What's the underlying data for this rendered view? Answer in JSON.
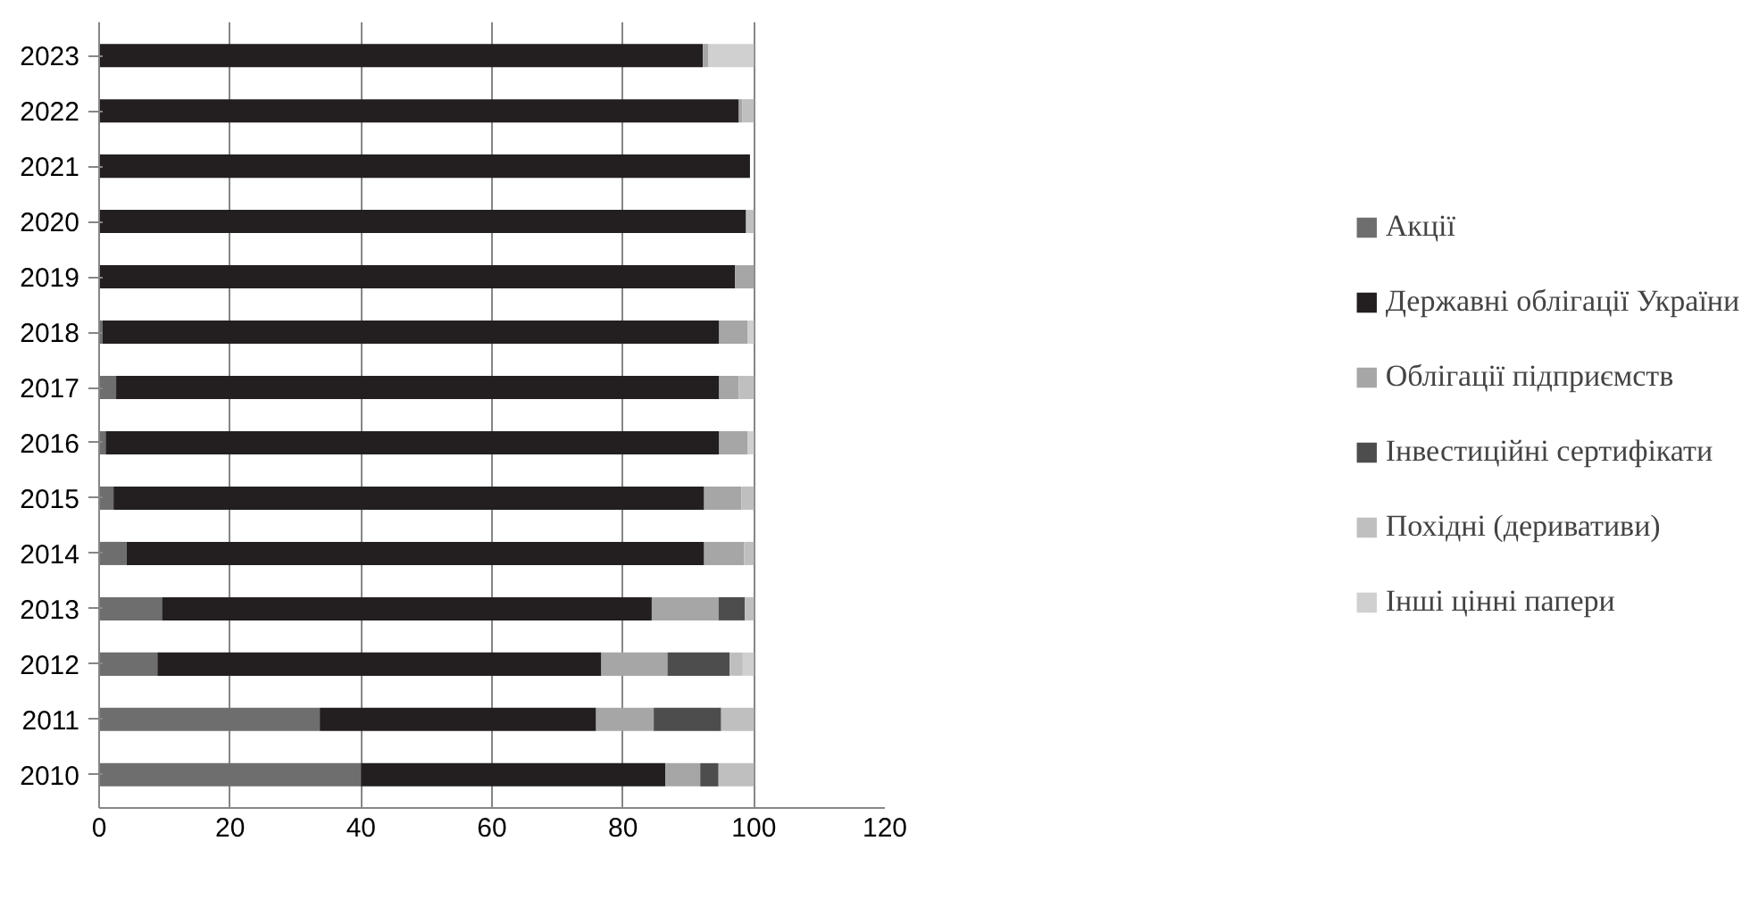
{
  "chart_data": {
    "type": "bar",
    "orientation": "horizontal",
    "stacked": true,
    "categories": [
      "2023",
      "2022",
      "2021",
      "2020",
      "2019",
      "2018",
      "2017",
      "2016",
      "2015",
      "2014",
      "2013",
      "2012",
      "2011",
      "2010"
    ],
    "series": [
      {
        "name": "Акції",
        "color": "#6e6e6e",
        "values": [
          0,
          0,
          0,
          0,
          0,
          0.5,
          2.6,
          1,
          2.2,
          4.2,
          9.6,
          8.9,
          33.7,
          40
        ]
      },
      {
        "name": "Державні облігації України",
        "color": "#231f20",
        "values": [
          92.2,
          97.7,
          99.4,
          98.8,
          97.1,
          94.2,
          92.1,
          93.7,
          90.2,
          88.2,
          74.8,
          67.8,
          42.2,
          46.5
        ]
      },
      {
        "name": "Облігації підприємств",
        "color": "#a6a6a6",
        "values": [
          0.8,
          0.5,
          null,
          0,
          2.9,
          4.3,
          3,
          4.3,
          5.7,
          6.1,
          10.2,
          10.1,
          8.8,
          5.3
        ]
      },
      {
        "name": "Інвестиційні сертифікати",
        "color": "#4d4d4d",
        "values": [
          0,
          0,
          0,
          0,
          0,
          0,
          0,
          0,
          0,
          0,
          4,
          9.5,
          10.3,
          2.8
        ]
      },
      {
        "name": "Похідні (деривативи)",
        "color": "#bfbfbf",
        "values": [
          0,
          1.8,
          0,
          1.2,
          0,
          0,
          2.3,
          0,
          1.9,
          1.5,
          1.4,
          2,
          5,
          5.4
        ]
      },
      {
        "name": "Інші цінні папери",
        "color": "#d0d0d0",
        "values": [
          7,
          0,
          null,
          0,
          0,
          1,
          0,
          1,
          0,
          0,
          0,
          1.7,
          0,
          0
        ]
      }
    ],
    "xlim": [
      0,
      120
    ],
    "xticks": [
      0,
      20,
      40,
      60,
      80,
      100,
      120
    ],
    "grid": "x",
    "legend": "right"
  }
}
